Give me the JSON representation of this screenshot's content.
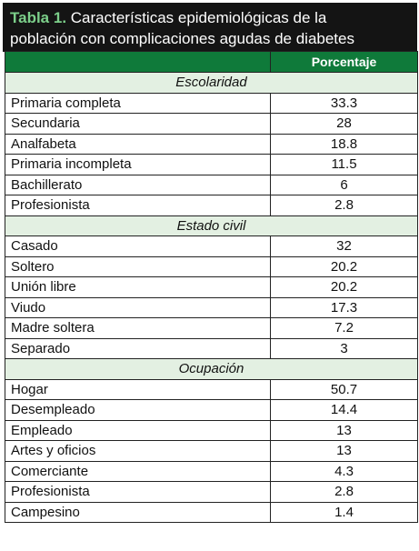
{
  "caption": {
    "label": "Tabla 1.",
    "line1": "Características epidemiológicas de la",
    "line2": "población con complicaciones agudas de diabetes"
  },
  "header": {
    "col1": "",
    "col2": "Porcentaje"
  },
  "sections": [
    {
      "title": "Escolaridad",
      "rows": [
        {
          "label": "Primaria completa",
          "value": "33.3"
        },
        {
          "label": "Secundaria",
          "value": "28"
        },
        {
          "label": "Analfabeta",
          "value": "18.8"
        },
        {
          "label": "Primaria incompleta",
          "value": "11.5"
        },
        {
          "label": "Bachillerato",
          "value": "6"
        },
        {
          "label": "Profesionista",
          "value": "2.8"
        }
      ]
    },
    {
      "title": "Estado civil",
      "rows": [
        {
          "label": "Casado",
          "value": "32"
        },
        {
          "label": "Soltero",
          "value": "20.2"
        },
        {
          "label": "Unión libre",
          "value": "20.2"
        },
        {
          "label": "Viudo",
          "value": "17.3"
        },
        {
          "label": "Madre soltera",
          "value": "7.2"
        },
        {
          "label": "Separado",
          "value": "3"
        }
      ]
    },
    {
      "title": "Ocupación",
      "rows": [
        {
          "label": "Hogar",
          "value": "50.7"
        },
        {
          "label": "Desempleado",
          "value": "14.4"
        },
        {
          "label": "Empleado",
          "value": "13"
        },
        {
          "label": "Artes y oficios",
          "value": "13"
        },
        {
          "label": "Comerciante",
          "value": "4.3"
        },
        {
          "label": "Profesionista",
          "value": "2.8"
        },
        {
          "label": "Campesino",
          "value": "1.4"
        }
      ]
    }
  ],
  "colors": {
    "header_green": "#0f7a3a",
    "caption_bg": "#141414",
    "label_green": "#7ccf8a",
    "section_bg": "#e3f0e2"
  }
}
